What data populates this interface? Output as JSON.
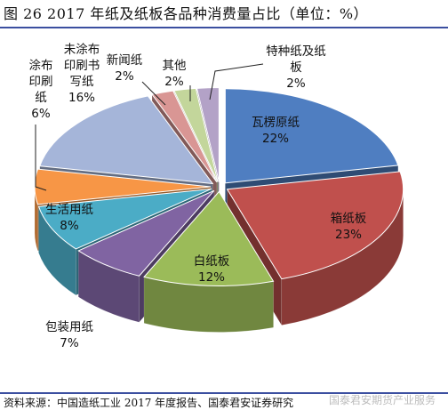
{
  "figure_title": "图 26 2017 年纸及纸板各品种消费量占比（单位：%）",
  "source_note": "资料来源：中国造纸工业 2017 年度报告、国泰君安证券研究",
  "watermark": "国泰君安期货产业服务",
  "colors": {
    "瓦楞原纸": "#4f7ec1",
    "箱纸板": "#c0504d",
    "白纸板": "#9bbb59",
    "包装用纸": "#8064a2",
    "生活用纸": "#4bacc6",
    "涂布印刷纸": "#f79646",
    "未涂布印刷书写纸": "#a5b5d9",
    "新闻纸": "#d99694",
    "其他": "#c3d69b",
    "特种纸及纸板": "#b3a2c7"
  },
  "chart_data": {
    "type": "pie",
    "style": "3d-exploded",
    "title": "",
    "slices": [
      {
        "name": "瓦楞原纸",
        "value": 22,
        "label": "22%"
      },
      {
        "name": "箱纸板",
        "value": 23,
        "label": "23%"
      },
      {
        "name": "白纸板",
        "value": 12,
        "label": "12%"
      },
      {
        "name": "包装用纸",
        "value": 7,
        "label": "7%"
      },
      {
        "name": "生活用纸",
        "value": 8,
        "label": "8%"
      },
      {
        "name": "涂布印刷纸",
        "value": 6,
        "label": "6%"
      },
      {
        "name": "未涂布印刷书写纸",
        "value": 16,
        "label": "16%"
      },
      {
        "name": "新闻纸",
        "value": 2,
        "label": "2%"
      },
      {
        "name": "其他",
        "value": 2,
        "label": "2%"
      },
      {
        "name": "特种纸及纸板",
        "value": 2,
        "label": "2%"
      }
    ],
    "label_lines": [
      [
        "瓦楞原纸",
        "22%"
      ],
      [
        "箱纸板",
        "23%"
      ],
      [
        "白纸板",
        "12%"
      ],
      [
        "包装用纸",
        "7%"
      ],
      [
        "生活用纸",
        "8%"
      ],
      [
        "涂布",
        "印刷",
        "纸",
        "6%"
      ],
      [
        "未涂布",
        "印刷书",
        "写纸",
        "16%"
      ],
      [
        "新闻纸",
        "2%"
      ],
      [
        "其他",
        "2%"
      ],
      [
        "特种纸及纸",
        "板",
        "2%"
      ]
    ]
  }
}
